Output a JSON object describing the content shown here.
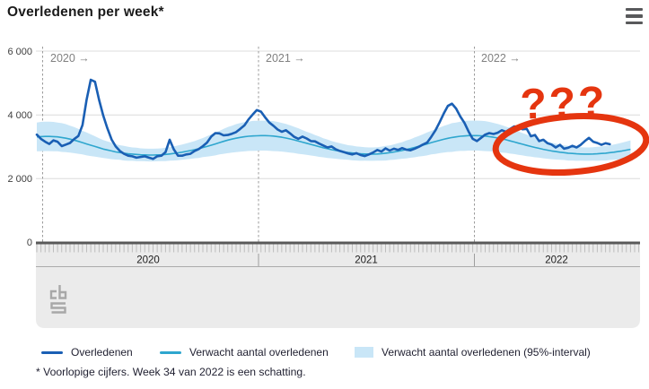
{
  "header": {
    "title": "Overledenen per week*"
  },
  "menu": {
    "tooltip": "menu"
  },
  "chart_data": {
    "type": "line",
    "title": "Overledenen per week*",
    "x_axis": {
      "unit": "week",
      "year_sections": [
        {
          "year": "2020",
          "marker_label": "2020 →",
          "weeks": 53
        },
        {
          "year": "2021",
          "marker_label": "2021 →",
          "weeks": 52
        },
        {
          "year": "2022",
          "marker_label": "2022 →",
          "weeks": 34
        }
      ]
    },
    "y_axis": {
      "min": 0,
      "max": 6000,
      "tick_interval": 2000,
      "tick_labels": [
        "6 000",
        "4 000",
        "2 000",
        "0"
      ]
    },
    "series": [
      {
        "name": "Overledenen",
        "type": "line",
        "color": "#1a5fb4",
        "values": [
          3380,
          3250,
          3160,
          3090,
          3200,
          3160,
          3020,
          3070,
          3120,
          3240,
          3340,
          3680,
          4480,
          5100,
          5040,
          4470,
          3980,
          3580,
          3230,
          3010,
          2870,
          2780,
          2720,
          2700,
          2660,
          2680,
          2700,
          2660,
          2620,
          2700,
          2720,
          2830,
          3220,
          2920,
          2720,
          2720,
          2760,
          2780,
          2870,
          2930,
          3020,
          3130,
          3320,
          3430,
          3420,
          3360,
          3370,
          3410,
          3460,
          3560,
          3670,
          3860,
          4010,
          4150,
          4100,
          3920,
          3760,
          3660,
          3540,
          3470,
          3520,
          3420,
          3310,
          3250,
          3320,
          3260,
          3180,
          3170,
          3100,
          3040,
          2980,
          3010,
          2920,
          2870,
          2830,
          2790,
          2760,
          2800,
          2740,
          2710,
          2760,
          2820,
          2900,
          2850,
          2950,
          2880,
          2940,
          2900,
          2960,
          2910,
          2890,
          2940,
          3000,
          3070,
          3130,
          3310,
          3510,
          3760,
          4040,
          4280,
          4350,
          4200,
          3950,
          3750,
          3480,
          3250,
          3180,
          3280,
          3380,
          3430,
          3400,
          3440,
          3520,
          3470,
          3560,
          3640,
          3620,
          3550,
          3560,
          3330,
          3370,
          3180,
          3220,
          3110,
          3070,
          2980,
          3060,
          2940,
          2970,
          3030,
          2980,
          3060,
          3180,
          3280,
          3160,
          3120,
          3060,
          3110,
          3080
        ]
      },
      {
        "name": "Verwacht aantal overledenen",
        "type": "line",
        "color": "#2ea6ce",
        "values": [
          3310,
          3320,
          3325,
          3325,
          3320,
          3310,
          3290,
          3270,
          3240,
          3210,
          3170,
          3130,
          3090,
          3050,
          3010,
          2970,
          2930,
          2900,
          2870,
          2840,
          2820,
          2800,
          2780,
          2770,
          2760,
          2750,
          2745,
          2740,
          2740,
          2745,
          2750,
          2760,
          2775,
          2790,
          2810,
          2830,
          2855,
          2880,
          2910,
          2940,
          2975,
          3010,
          3050,
          3090,
          3130,
          3170,
          3210,
          3240,
          3270,
          3295,
          3315,
          3330,
          3340,
          3345,
          3350,
          3350,
          3345,
          3335,
          3320,
          3300,
          3275,
          3245,
          3215,
          3180,
          3145,
          3110,
          3075,
          3040,
          3005,
          2970,
          2940,
          2910,
          2885,
          2860,
          2840,
          2820,
          2805,
          2790,
          2780,
          2775,
          2770,
          2770,
          2775,
          2785,
          2800,
          2815,
          2835,
          2860,
          2885,
          2915,
          2945,
          2980,
          3015,
          3050,
          3090,
          3130,
          3165,
          3200,
          3235,
          3265,
          3290,
          3310,
          3330,
          3340,
          3350,
          3350,
          3350,
          3345,
          3335,
          3320,
          3300,
          3275,
          3250,
          3220,
          3185,
          3150,
          3115,
          3080,
          3045,
          3010,
          2980,
          2950,
          2920,
          2895,
          2870,
          2850,
          2830,
          2815,
          2800,
          2790,
          2780,
          2775,
          2770,
          2770,
          2775,
          2780,
          2790,
          2800,
          2815,
          2830,
          2850,
          2870,
          2895,
          2920
        ]
      }
    ],
    "band": {
      "name": "Verwacht aantal overledenen (95%-interval)",
      "color": "#c9e6f7",
      "center": "Verwacht aantal overledenen",
      "halfwidth": [
        450,
        460,
        460,
        460,
        460,
        450,
        450,
        440,
        420,
        410,
        390,
        370,
        360,
        340,
        320,
        300,
        280,
        270,
        260,
        240,
        230,
        230,
        220,
        210,
        210,
        200,
        200,
        200,
        200,
        200,
        200,
        210,
        210,
        220,
        230,
        240,
        250,
        260,
        270,
        290,
        300,
        320,
        340,
        360,
        370,
        390,
        410,
        420,
        440,
        450,
        460,
        460,
        470,
        470,
        470,
        470,
        470,
        470,
        460,
        450,
        440,
        430,
        410,
        400,
        380,
        360,
        350,
        330,
        320,
        300,
        290,
        270,
        260,
        250,
        240,
        230,
        230,
        220,
        220,
        210,
        210,
        210,
        210,
        220,
        230,
        230,
        240,
        250,
        260,
        280,
        290,
        310,
        320,
        340,
        360,
        370,
        390,
        400,
        420,
        430,
        450,
        450,
        460,
        470,
        470,
        470,
        470,
        470,
        470,
        460,
        450,
        440,
        430,
        410,
        400,
        380,
        370,
        350,
        340,
        320,
        310,
        290,
        280,
        270,
        260,
        250,
        240,
        230,
        230,
        220,
        220,
        210,
        210,
        210,
        210,
        220,
        220,
        230,
        230,
        240,
        250,
        260,
        270,
        280
      ]
    },
    "annotation": {
      "text": "???",
      "color": "#e5350f",
      "shape": "ellipse",
      "target": "2022 tail of Overledenen line"
    }
  },
  "legend": {
    "items": [
      {
        "label": "Overledenen",
        "type": "line",
        "color": "#1a5fb4"
      },
      {
        "label": "Verwacht aantal overledenen",
        "type": "line",
        "color": "#2ea6ce"
      },
      {
        "label": "Verwacht aantal overledenen (95%-interval)",
        "type": "band",
        "color": "#c9e6f7"
      }
    ]
  },
  "footnote": "* Voorlopige cijfers. Week 34 van 2022 is een schatting.",
  "logo": {
    "name": "cbs"
  }
}
